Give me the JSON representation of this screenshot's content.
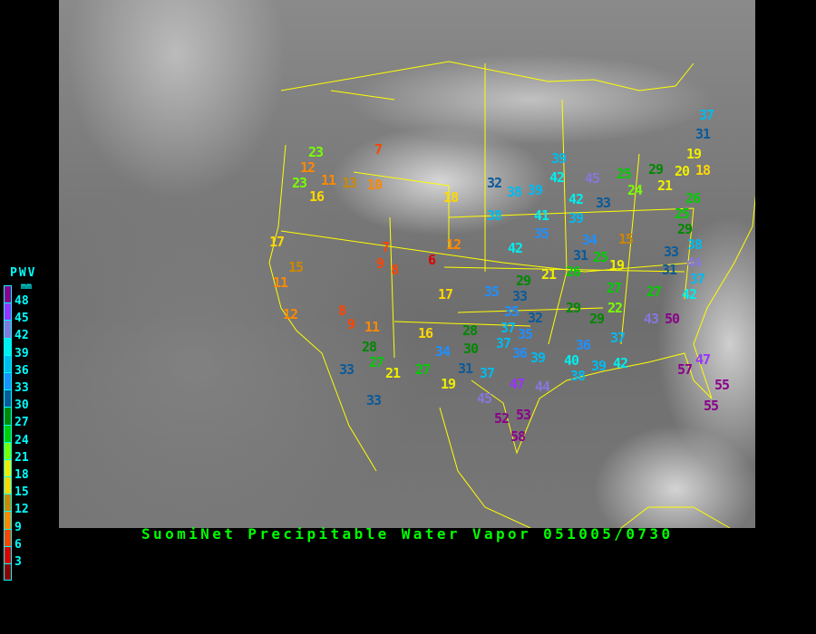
{
  "title": "SuomiNet Precipitable Water Vapor 051005/0730",
  "legend": {
    "title": "PWV",
    "unit": "mm",
    "ticks": [
      "48",
      "45",
      "42",
      "39",
      "36",
      "33",
      "30",
      "27",
      "24",
      "21",
      "18",
      "15",
      "12",
      "9",
      "6",
      "3"
    ],
    "colors": [
      "#8b008b",
      "#9933ff",
      "#8877dd",
      "#00eeee",
      "#00bbee",
      "#1e90ff",
      "#0a5a9a",
      "#008800",
      "#00cc00",
      "#77ff00",
      "#eeee00",
      "#ffd700",
      "#cc8800",
      "#ff8800",
      "#ff4400",
      "#dd0000",
      "#8b0000"
    ]
  },
  "map": {
    "background": "infrared satellite imagery",
    "boundary_color": "#ffff00"
  },
  "stations": [
    23,
    12,
    23,
    11,
    13,
    10,
    16,
    7,
    17,
    15,
    11,
    12,
    7,
    9,
    8,
    6,
    12,
    18,
    17,
    8,
    9,
    11,
    16,
    28,
    27,
    21,
    27,
    33,
    33,
    34,
    30,
    28,
    31,
    37,
    19,
    45,
    47,
    44,
    52,
    53,
    58,
    35,
    35,
    33,
    29,
    37,
    32,
    35,
    37,
    36,
    39,
    36,
    40,
    38,
    39,
    42,
    37,
    43,
    50,
    29,
    29,
    22,
    47,
    57,
    55,
    55,
    27,
    27,
    42,
    37,
    31,
    44,
    33,
    38,
    19,
    15,
    25,
    34,
    31,
    26,
    21,
    42,
    35,
    38,
    41,
    39,
    42,
    33,
    32,
    38,
    39,
    39,
    42,
    45,
    25,
    29,
    24,
    21,
    19,
    20,
    18,
    26,
    25,
    29,
    37,
    31
  ]
}
